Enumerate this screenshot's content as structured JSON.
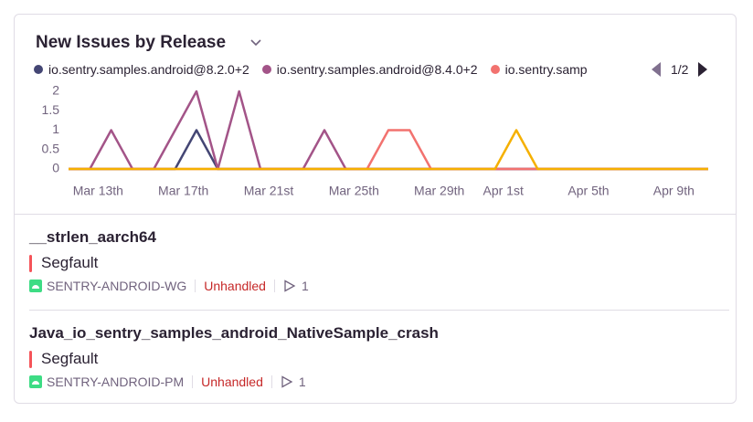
{
  "widget": {
    "title": "New Issues by Release",
    "legend_page": "1/2"
  },
  "chart_data": {
    "type": "line",
    "categories": [
      null,
      "Mar 13th",
      null,
      null,
      null,
      "Mar 17th",
      null,
      null,
      null,
      "Mar 21st",
      null,
      null,
      null,
      "Mar 25th",
      null,
      null,
      null,
      "Mar 29th",
      null,
      null,
      "Apr 1st",
      null,
      null,
      null,
      "Apr 5th",
      null,
      null,
      null,
      "Apr 9th",
      null,
      null
    ],
    "series": [
      {
        "name": "io.sentry.samples.android@8.2.0+2",
        "color": "#444674",
        "values": [
          0,
          0,
          0,
          0,
          0,
          0,
          1,
          0,
          0,
          0,
          0,
          0,
          0,
          0,
          0,
          0,
          0,
          0,
          0,
          0,
          0,
          0,
          0,
          0,
          0,
          0,
          0,
          0,
          0,
          0,
          0
        ]
      },
      {
        "name": "io.sentry.samples.android@8.4.0+2",
        "color": "#a35488",
        "values": [
          0,
          0,
          1,
          0,
          0,
          1,
          2,
          0,
          2,
          0,
          0,
          0,
          1,
          0,
          0,
          0,
          0,
          0,
          0,
          0,
          0,
          0,
          0,
          0,
          0,
          0,
          0,
          0,
          0,
          0,
          0
        ]
      },
      {
        "name": "io.sentry.samp",
        "color": "#f2726f",
        "values": [
          0,
          0,
          0,
          0,
          0,
          0,
          0,
          0,
          0,
          0,
          0,
          0,
          0,
          0,
          0,
          1,
          1,
          0,
          0,
          0,
          0,
          0,
          0,
          0,
          0,
          0,
          0,
          0,
          0,
          0,
          0
        ]
      },
      {
        "color": "#f5b000",
        "values": [
          0,
          0,
          0,
          0,
          0,
          0,
          0,
          0,
          0,
          0,
          0,
          0,
          0,
          0,
          0,
          0,
          0,
          0,
          0,
          0,
          0,
          1,
          0,
          0,
          0,
          0,
          0,
          0,
          0,
          0,
          0
        ]
      }
    ],
    "ylim": [
      0,
      2
    ],
    "yticks": [
      0,
      0.5,
      1,
      1.5,
      2
    ],
    "grid": false
  },
  "issues": [
    {
      "title": "__strlen_aarch64",
      "message": "Segfault",
      "project": "SENTRY-ANDROID-WG",
      "status": "Unhandled",
      "events": "1"
    },
    {
      "title": "Java_io_sentry_samples_android_NativeSample_crash",
      "message": "Segfault",
      "project": "SENTRY-ANDROID-PM",
      "status": "Unhandled",
      "events": "1"
    }
  ]
}
